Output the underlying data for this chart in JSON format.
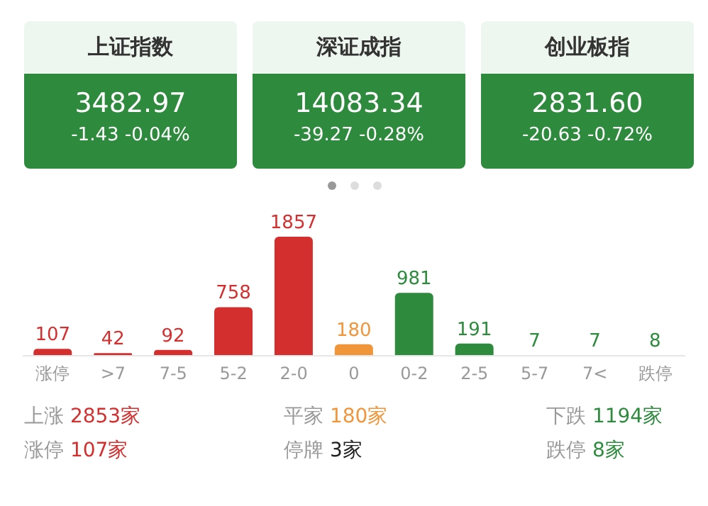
{
  "chart_data": [
    {
      "type": "other",
      "title": "上证指数",
      "annotations": [
        "3482.97",
        "-1.43",
        "-0.04%"
      ]
    },
    {
      "type": "other",
      "title": "深证成指",
      "annotations": [
        "14083.34",
        "-39.27",
        "-0.28%"
      ]
    },
    {
      "type": "other",
      "title": "创业板指",
      "annotations": [
        "2831.60",
        "-20.63",
        "-0.72%"
      ]
    },
    {
      "type": "bar",
      "categories": [
        "涨停",
        ">7",
        "7-5",
        "5-2",
        "2-0",
        "0",
        "0-2",
        "2-5",
        "5-7",
        "7<",
        "跌停"
      ],
      "values": [
        107,
        42,
        92,
        758,
        1857,
        180,
        981,
        191,
        7,
        7,
        8
      ],
      "colors": [
        "#d32f2f",
        "#d32f2f",
        "#d32f2f",
        "#d32f2f",
        "#d32f2f",
        "#f0953a",
        "#2e8b3e",
        "#2e8b3e",
        "#2e8b3e",
        "#2e8b3e",
        "#2e8b3e"
      ],
      "data_labels": true,
      "annotations": [
        "上涨 2853家",
        "平家 180家",
        "下跌 1194家",
        "涨停 107家",
        "停牌 3家",
        "跌停 8家"
      ]
    }
  ]
}
